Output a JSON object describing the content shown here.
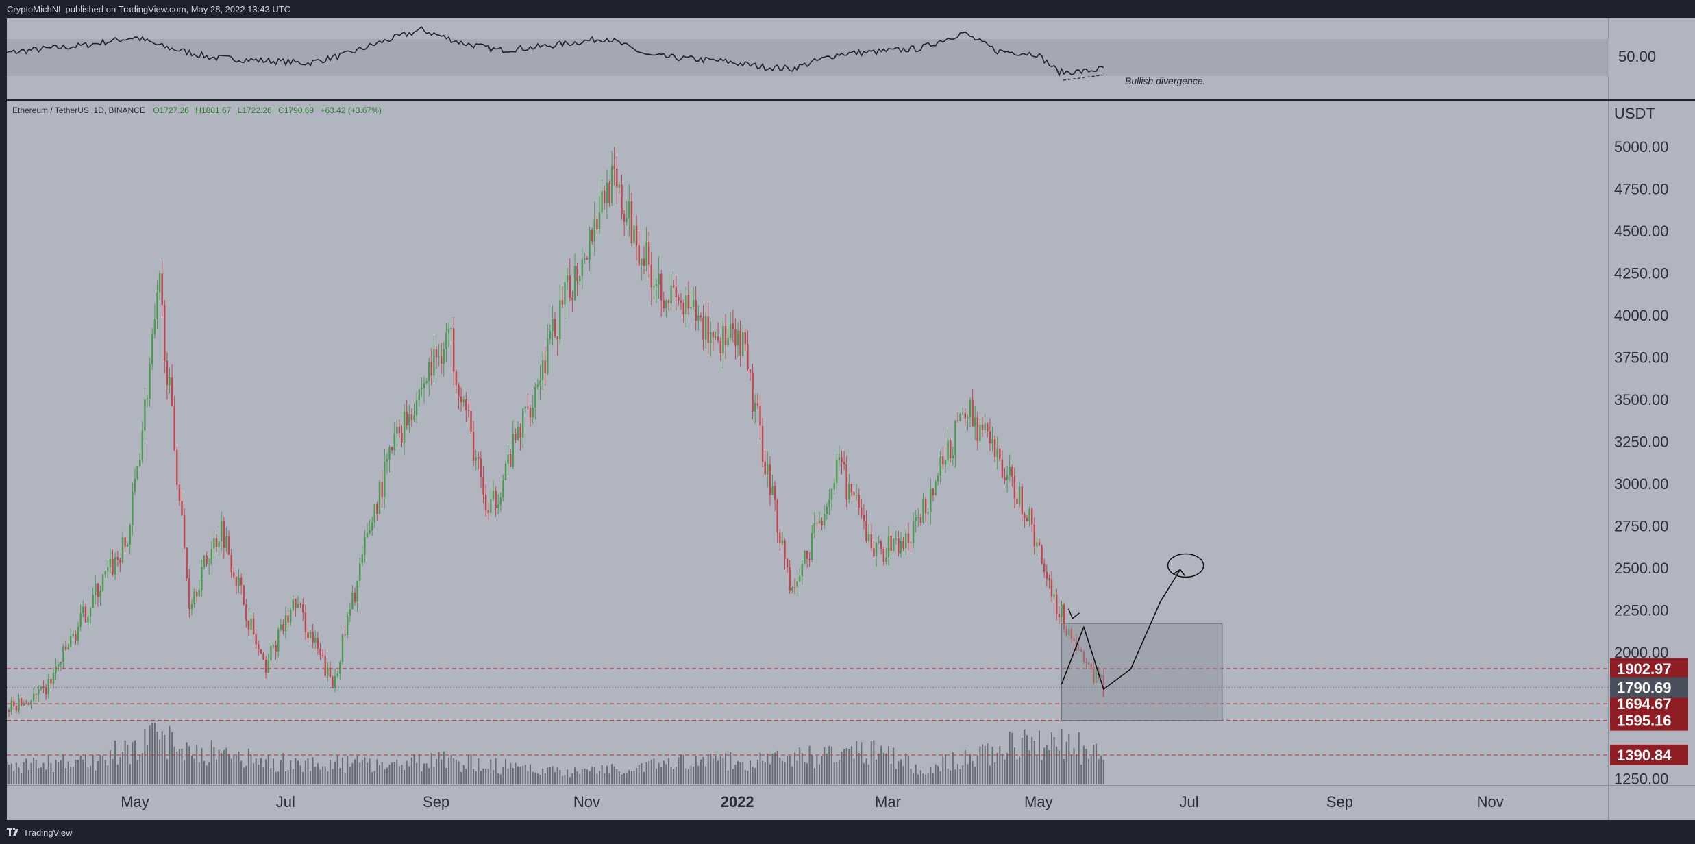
{
  "header": {
    "publisher": "CryptoMichNL published on TradingView.com, May 28, 2022 13:43 UTC"
  },
  "footer": {
    "brand": "TradingView"
  },
  "colors": {
    "background": "#b1b5bf",
    "frame": "#1e222d",
    "up_candle": "#4c9a52",
    "down_candle": "#c2444d",
    "level_line": "#c2444d",
    "level_badge": "#8f1d24",
    "current_badge": "#4a4f5c"
  },
  "chart_data": [
    {
      "type": "line",
      "panel": "oscillator",
      "axis_tick": "50.00",
      "band": [
        30,
        70
      ],
      "annotation": "Bullish divergence.",
      "x": [
        "2021-03-01",
        "2021-03-20",
        "2021-04-10",
        "2021-05-01",
        "2021-05-12",
        "2021-06-01",
        "2021-06-20",
        "2021-07-10",
        "2021-07-25",
        "2021-08-10",
        "2021-08-25",
        "2021-09-10",
        "2021-09-25",
        "2021-10-10",
        "2021-10-25",
        "2021-11-08",
        "2021-11-25",
        "2021-12-10",
        "2021-12-25",
        "2022-01-10",
        "2022-01-22",
        "2022-02-10",
        "2022-02-25",
        "2022-03-15",
        "2022-04-01",
        "2022-04-15",
        "2022-05-01",
        "2022-05-10",
        "2022-05-20",
        "2022-05-28"
      ],
      "values": [
        52,
        58,
        63,
        72,
        62,
        50,
        47,
        44,
        53,
        68,
        80,
        66,
        58,
        61,
        66,
        71,
        52,
        49,
        46,
        40,
        38,
        54,
        56,
        60,
        77,
        57,
        54,
        34,
        35,
        38
      ]
    },
    {
      "type": "candlestick",
      "panel": "main",
      "symbol": "Ethereum / TetherUS, 1D, BINANCE",
      "ohlc_labels": {
        "open": "O1727.26",
        "high": "H1801.67",
        "low": "L1722.26",
        "close": "C1790.69",
        "change": "+63.42 (+3.67%)"
      },
      "currency": "USDT",
      "x_ticks": [
        "May",
        "Jul",
        "Sep",
        "Nov",
        "2022",
        "Mar",
        "May",
        "Jul",
        "Sep",
        "Nov"
      ],
      "y_ticks": [
        "5000.00",
        "4750.00",
        "4500.00",
        "4250.00",
        "4000.00",
        "3750.00",
        "3500.00",
        "3250.00",
        "3000.00",
        "2750.00",
        "2500.00",
        "2250.00",
        "2000.00",
        "1250.00"
      ],
      "ylim": [
        1250,
        5000
      ],
      "key_levels": [
        "1902.97",
        "1694.67",
        "1595.16",
        "1390.84"
      ],
      "current_price": "1790.69",
      "price_path": {
        "x": [
          "2021-03-01",
          "2021-03-25",
          "2021-04-15",
          "2021-04-28",
          "2021-05-11",
          "2021-05-23",
          "2021-06-05",
          "2021-06-22",
          "2021-07-05",
          "2021-07-20",
          "2021-08-05",
          "2021-08-14",
          "2021-09-05",
          "2021-09-21",
          "2021-10-01",
          "2021-10-20",
          "2021-11-09",
          "2021-11-25",
          "2021-12-04",
          "2021-12-20",
          "2022-01-02",
          "2022-01-22",
          "2022-02-10",
          "2022-02-24",
          "2022-03-10",
          "2022-04-03",
          "2022-04-25",
          "2022-05-10",
          "2022-05-20",
          "2022-05-28"
        ],
        "values": [
          1600,
          1750,
          2350,
          2650,
          4150,
          2300,
          2750,
          1900,
          2300,
          1800,
          2800,
          3250,
          3900,
          2800,
          3200,
          4000,
          4800,
          4300,
          4100,
          3900,
          3800,
          2350,
          3100,
          2600,
          2650,
          3450,
          2900,
          2250,
          1950,
          1790
        ]
      },
      "volume": {
        "x": [
          "2021-03-01",
          "2021-04-15",
          "2021-05-12",
          "2021-05-19",
          "2021-06-21",
          "2021-07-20",
          "2021-09-07",
          "2021-10-20",
          "2021-11-10",
          "2021-12-04",
          "2022-01-22",
          "2022-02-24",
          "2022-03-15",
          "2022-05-10",
          "2022-05-12",
          "2022-05-28"
        ],
        "values": [
          0.35,
          0.45,
          0.95,
          0.75,
          0.45,
          0.4,
          0.45,
          0.25,
          0.3,
          0.4,
          0.5,
          0.7,
          0.3,
          0.95,
          0.8,
          0.55
        ]
      },
      "drawings": {
        "box": {
          "x": [
            "2022-05-11",
            "2022-07-15"
          ],
          "y": [
            1595.16,
            2170
          ]
        },
        "projection": {
          "x": [
            "2022-05-11",
            "2022-05-20",
            "2022-05-28",
            "2022-06-08",
            "2022-06-20",
            "2022-06-28"
          ],
          "values": [
            1810,
            2150,
            1780,
            1900,
            2300,
            2490
          ]
        }
      }
    }
  ]
}
